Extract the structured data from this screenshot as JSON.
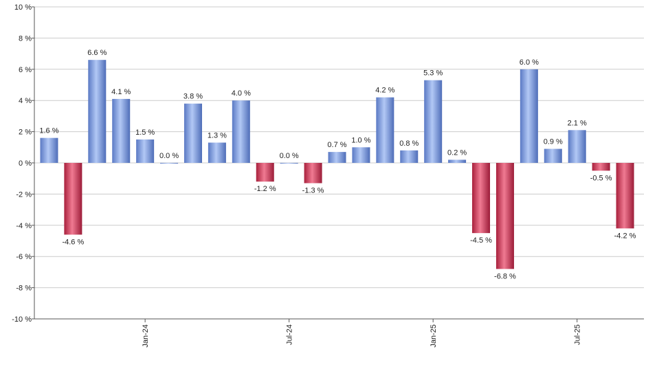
{
  "chart_data": {
    "type": "bar",
    "ylim": [
      -10,
      10
    ],
    "y_ticks": [
      10,
      8,
      6,
      4,
      2,
      0,
      -2,
      -4,
      -6,
      -8,
      -10
    ],
    "y_tick_suffix": " %",
    "grid": true,
    "legend": "none",
    "colors": {
      "positive": "#7b9ee0",
      "negative": "#d0405e",
      "grid": "#cccccc",
      "axis": "#555555"
    },
    "x_tick_labels": [
      {
        "label": "Jan-24",
        "index": 4
      },
      {
        "label": "Jul-24",
        "index": 10
      },
      {
        "label": "Jan-25",
        "index": 16
      },
      {
        "label": "Jul-25",
        "index": 22
      }
    ],
    "values": [
      1.6,
      -4.6,
      6.6,
      4.1,
      1.5,
      0.0,
      3.8,
      1.3,
      4.0,
      -1.2,
      0.0,
      -1.3,
      0.7,
      1.0,
      4.2,
      0.8,
      5.3,
      0.2,
      -4.5,
      -6.8,
      6.0,
      0.9,
      2.1,
      -0.5,
      -4.2
    ],
    "data_labels": [
      "1.6 %",
      "-4.6 %",
      "6.6 %",
      "4.1 %",
      "1.5 %",
      "0.0 %",
      "3.8 %",
      "1.3 %",
      "4.0 %",
      "-1.2 %",
      "0.0 %",
      "-1.3 %",
      "0.7 %",
      "1.0 %",
      "4.2 %",
      "0.8 %",
      "5.3 %",
      "0.2 %",
      "-4.5 %",
      "-6.8 %",
      "6.0 %",
      "0.9 %",
      "2.1 %",
      "-0.5 %",
      "-4.2 %"
    ]
  }
}
